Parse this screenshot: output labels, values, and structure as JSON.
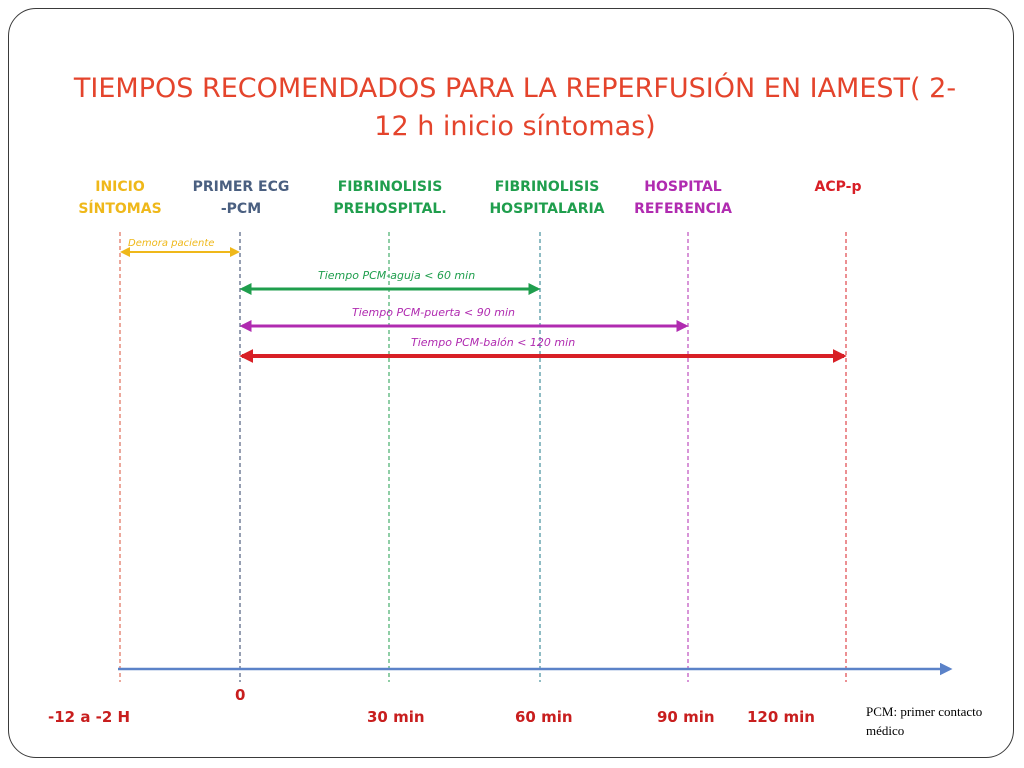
{
  "title": "TIEMPOS RECOMENDADOS PARA LA REPERFUSIÓN EN IAMEST( 2-12 h inicio síntomas)",
  "colors": {
    "title": "#e4442c",
    "inicio": "#efb81a",
    "primer_ecg": "#4a5f80",
    "fibrinolisis": "#1f9e4d",
    "hospital": "#b02bb0",
    "acp": "#d81f26",
    "axis": "#5b82c8",
    "time_labels": "#c81e1e"
  },
  "milestones": {
    "inicio": {
      "line1": "INICIO",
      "line2": "SÍNTOMAS"
    },
    "primer_ecg": {
      "line1": "PRIMER ECG",
      "line2": "-PCM"
    },
    "fibrinolisis_pre": {
      "line1": "FIBRINOLISIS",
      "line2": "PREHOSPITAL."
    },
    "fibrinolisis_hosp": {
      "line1": "FIBRINOLISIS",
      "line2": "HOSPITALARIA"
    },
    "hospital_ref": {
      "line1": "HOSPITAL",
      "line2": "REFERENCIA"
    },
    "acp": {
      "line1": "ACP-p"
    }
  },
  "intervals": {
    "demora": "Demora paciente",
    "aguja": "Tiempo PCM-aguja < 60 min",
    "puerta": "Tiempo PCM-puerta < 90 min",
    "balon": "Tiempo PCM-balón < 120 min"
  },
  "time_labels": {
    "t_start": "-12 a -2  H",
    "t0": "0",
    "t30": "30 min",
    "t60": "60 min",
    "t90": "90 min",
    "t120": "120 min"
  },
  "footnote": "PCM: primer contacto médico"
}
